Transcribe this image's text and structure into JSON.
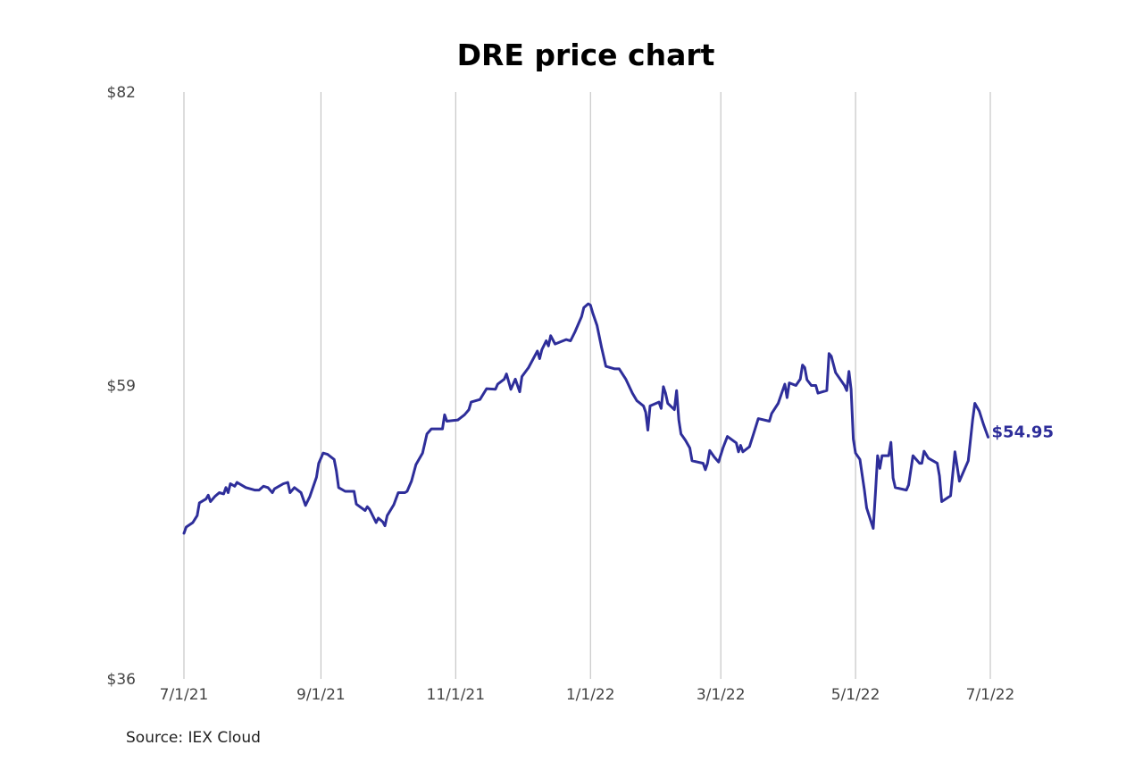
{
  "chart_data": {
    "type": "line",
    "title": "DRE price chart",
    "xlabel": "",
    "ylabel": "",
    "start_date": "2021-07-01",
    "x_unit": "days since start_date",
    "xlim": [
      0,
      365
    ],
    "ylim": [
      36,
      82
    ],
    "grid": "vertical",
    "y_ticks": [
      {
        "value": 36,
        "label": "$36"
      },
      {
        "value": 59,
        "label": "$59"
      },
      {
        "value": 82,
        "label": "$82"
      }
    ],
    "x_ticks": [
      {
        "value": 0,
        "label": "7/1/21"
      },
      {
        "value": 62,
        "label": "9/1/21"
      },
      {
        "value": 123,
        "label": "11/1/21"
      },
      {
        "value": 184,
        "label": "1/1/22"
      },
      {
        "value": 243,
        "label": "3/1/22"
      },
      {
        "value": 304,
        "label": "5/1/22"
      },
      {
        "value": 365,
        "label": "7/1/22"
      }
    ],
    "series": [
      {
        "name": "DRE",
        "color": "#2e2e9a",
        "last_label": "$54.95",
        "x": [
          0,
          1,
          4,
          6,
          7,
          10,
          11,
          12,
          14,
          16,
          18,
          19,
          20,
          21,
          23,
          24,
          28,
          32,
          34,
          36,
          38,
          40,
          41,
          45,
          47,
          48,
          50,
          53,
          55,
          57,
          60,
          61,
          63,
          65,
          68,
          69,
          70,
          73,
          77,
          78,
          82,
          83,
          84,
          87,
          88,
          90,
          91,
          92,
          95,
          97,
          100,
          101,
          103,
          105,
          108,
          110,
          112,
          117,
          118,
          119,
          124,
          127,
          129,
          130,
          134,
          137,
          141,
          142,
          145,
          146,
          148,
          150,
          152,
          153,
          156,
          160,
          161,
          162,
          164,
          165,
          166,
          168,
          173,
          175,
          177,
          179,
          180,
          181,
          183,
          184,
          185,
          187,
          189,
          191,
          195,
          197,
          200,
          203,
          205,
          208,
          209,
          210,
          211,
          215,
          216,
          217,
          218,
          219,
          222,
          223,
          224,
          225,
          227,
          229,
          230,
          235,
          236,
          237,
          238,
          240,
          242,
          244,
          246,
          250,
          251,
          252,
          253,
          256,
          258,
          260,
          265,
          266,
          269,
          271,
          272,
          273,
          274,
          277,
          279,
          280,
          281,
          282,
          284,
          286,
          287,
          291,
          292,
          293,
          295,
          299,
          300,
          301,
          302,
          303,
          304,
          306,
          308,
          309,
          312,
          313,
          314,
          315,
          316,
          319,
          320,
          321,
          322,
          327,
          328,
          330,
          333,
          334,
          335,
          337,
          341,
          342,
          343,
          347,
          349,
          351,
          355,
          357,
          358,
          360,
          362,
          364
        ],
        "y": [
          47.41,
          47.9,
          48.25,
          48.8,
          49.8,
          50.1,
          50.4,
          49.9,
          50.3,
          50.6,
          50.5,
          51.0,
          50.6,
          51.3,
          51.1,
          51.4,
          51.0,
          50.8,
          50.8,
          51.1,
          51.0,
          50.6,
          50.9,
          51.3,
          51.4,
          50.6,
          51.0,
          50.6,
          49.6,
          50.3,
          51.8,
          52.9,
          53.7,
          53.6,
          53.2,
          52.3,
          51.0,
          50.7,
          50.7,
          49.7,
          49.2,
          49.5,
          49.3,
          48.25,
          48.6,
          48.3,
          48.0,
          48.8,
          49.65,
          50.6,
          50.6,
          50.7,
          51.5,
          52.8,
          53.7,
          55.2,
          55.6,
          55.6,
          56.7,
          56.2,
          56.3,
          56.7,
          57.1,
          57.7,
          57.9,
          58.75,
          58.7,
          59.1,
          59.5,
          59.9,
          58.7,
          59.5,
          58.5,
          59.7,
          60.4,
          61.7,
          61.1,
          61.8,
          62.5,
          62.1,
          62.9,
          62.25,
          62.6,
          62.5,
          63.2,
          64.0,
          64.4,
          65.1,
          65.4,
          65.3,
          64.7,
          63.7,
          62.0,
          60.5,
          60.3,
          60.3,
          59.5,
          58.4,
          57.8,
          57.4,
          56.9,
          55.5,
          57.4,
          57.7,
          57.2,
          58.9,
          58.4,
          57.6,
          57.1,
          58.6,
          56.3,
          55.2,
          54.7,
          54.1,
          53.1,
          52.9,
          52.4,
          52.9,
          53.9,
          53.4,
          53.0,
          54.1,
          55.0,
          54.5,
          53.8,
          54.3,
          53.8,
          54.2,
          55.3,
          56.4,
          56.2,
          56.8,
          57.6,
          58.6,
          59.1,
          58.05,
          59.2,
          59.0,
          59.5,
          60.6,
          60.4,
          59.45,
          59.0,
          59.0,
          58.4,
          58.6,
          61.5,
          61.3,
          60.0,
          59.0,
          58.6,
          60.1,
          58.7,
          54.8,
          53.7,
          53.2,
          50.8,
          49.4,
          47.8,
          50.6,
          53.5,
          52.5,
          53.5,
          53.5,
          54.55,
          51.75,
          51.0,
          50.8,
          51.2,
          53.5,
          52.9,
          52.9,
          53.85,
          53.3,
          52.9,
          51.9,
          49.9,
          50.35,
          53.8,
          51.5,
          53.1,
          56.3,
          57.6,
          57.0,
          55.9,
          54.95
        ]
      }
    ],
    "source": "Source: IEX Cloud"
  }
}
